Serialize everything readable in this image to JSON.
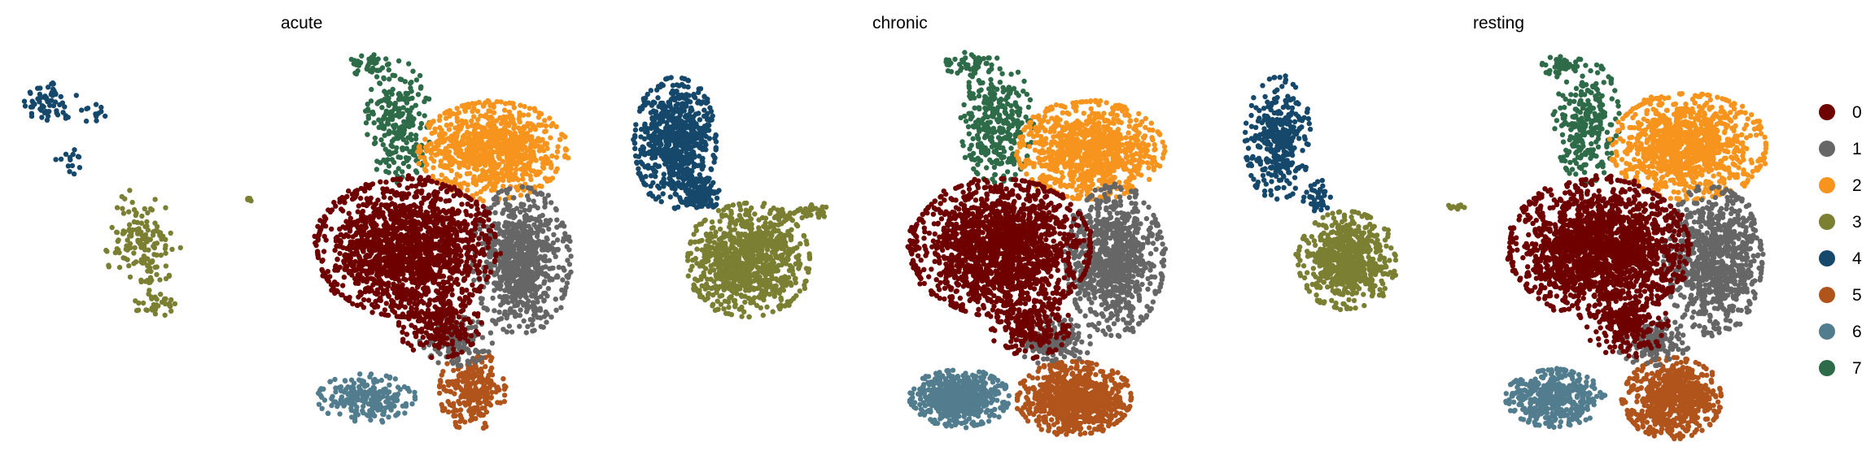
{
  "chart_data": {
    "type": "scatter",
    "panels": [
      {
        "title": "acute"
      },
      {
        "title": "chronic"
      },
      {
        "title": "resting"
      }
    ],
    "legend": {
      "placement": "right",
      "entries": [
        {
          "label": "0",
          "color": "#6E0000"
        },
        {
          "label": "1",
          "color": "#666666"
        },
        {
          "label": "2",
          "color": "#F7941D"
        },
        {
          "label": "3",
          "color": "#7A7F32"
        },
        {
          "label": "4",
          "color": "#15486B"
        },
        {
          "label": "5",
          "color": "#B1541C"
        },
        {
          "label": "6",
          "color": "#527D8E"
        },
        {
          "label": "7",
          "color": "#2E6B48"
        }
      ]
    },
    "axes": "none",
    "grid": false
  }
}
